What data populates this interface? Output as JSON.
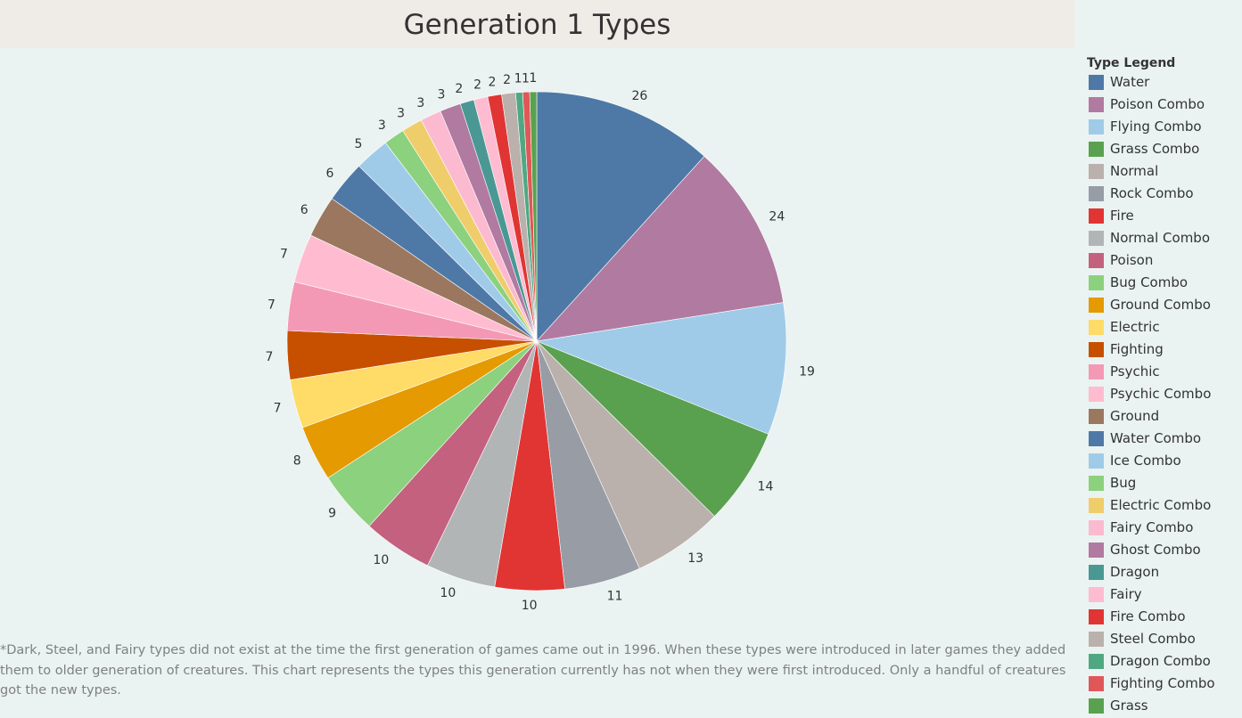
{
  "title": "Generation 1 Types",
  "legend_title": "Type Legend",
  "footnote": "*Dark, Steel, and Fairy types did not exist at the time the first generation of games came out in 1996. When these types were introduced in later games they added them to older generation of creatures. This chart represents the types this generation currently has not when they were first introduced. Only a handful of creatures got the new types.",
  "chart_data": {
    "type": "pie",
    "title": "Generation 1 Types",
    "legend_title": "Type Legend",
    "legend_position": "right",
    "start": "top, clockwise",
    "slices": [
      {
        "name": "Water",
        "value": 26,
        "color": "#4e79a7"
      },
      {
        "name": "Poison Combo",
        "value": 24,
        "color": "#b07aa1"
      },
      {
        "name": "Flying Combo",
        "value": 19,
        "color": "#a0cbe8"
      },
      {
        "name": "Grass Combo",
        "value": 14,
        "color": "#59a14f"
      },
      {
        "name": "Normal",
        "value": 13,
        "color": "#bab0ac"
      },
      {
        "name": "Rock Combo",
        "value": 11,
        "color": "#979ca5"
      },
      {
        "name": "Fire",
        "value": 10,
        "color": "#e03533"
      },
      {
        "name": "Normal Combo",
        "value": 10,
        "color": "#b2b5b6"
      },
      {
        "name": "Poison",
        "value": 10,
        "color": "#c4617f"
      },
      {
        "name": "Bug Combo",
        "value": 9,
        "color": "#8cd17d"
      },
      {
        "name": "Ground Combo",
        "value": 8,
        "color": "#e49a00"
      },
      {
        "name": "Electric",
        "value": 7,
        "color": "#ffdb67"
      },
      {
        "name": "Fighting",
        "value": 7,
        "color": "#c75000"
      },
      {
        "name": "Psychic",
        "value": 7,
        "color": "#f499b5"
      },
      {
        "name": "Psychic Combo",
        "value": 7,
        "color": "#ffbcd1"
      },
      {
        "name": "Ground",
        "value": 6,
        "color": "#9b775f"
      },
      {
        "name": "Water Combo",
        "value": 6,
        "color": "#4e79a7"
      },
      {
        "name": "Ice Combo",
        "value": 5,
        "color": "#a0cbe8"
      },
      {
        "name": "Bug",
        "value": 3,
        "color": "#8cd17d"
      },
      {
        "name": "Electric Combo",
        "value": 3,
        "color": "#f0cd6b"
      },
      {
        "name": "Fairy Combo",
        "value": 3,
        "color": "#fbbad0"
      },
      {
        "name": "Ghost Combo",
        "value": 3,
        "color": "#b07aa1"
      },
      {
        "name": "Dragon",
        "value": 2,
        "color": "#499894"
      },
      {
        "name": "Fairy",
        "value": 2,
        "color": "#ffbcd1"
      },
      {
        "name": "Fire Combo",
        "value": 2,
        "color": "#e03533"
      },
      {
        "name": "Steel Combo",
        "value": 2,
        "color": "#bab0ac"
      },
      {
        "name": "Dragon Combo",
        "value": 1,
        "color": "#4fa882"
      },
      {
        "name": "Fighting Combo",
        "value": 1,
        "color": "#e05757"
      },
      {
        "name": "Grass",
        "value": 1,
        "color": "#59a14f"
      }
    ]
  }
}
